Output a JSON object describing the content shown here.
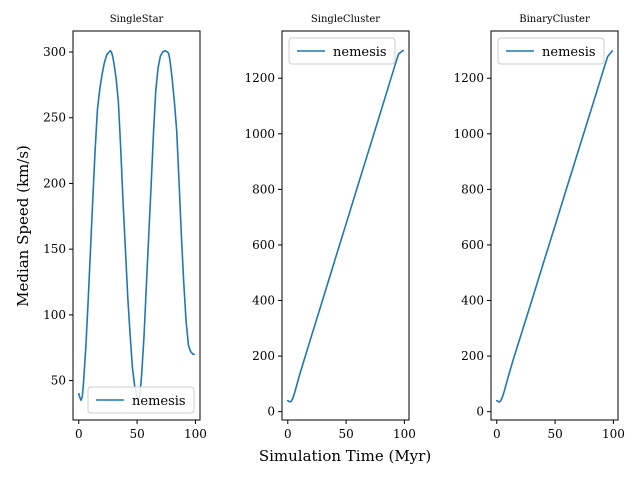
{
  "figure": {
    "xlabel": "Simulation Time (Myr)",
    "ylabel": "Median Speed (km/s)",
    "line_color": "#1f77b4"
  },
  "chart_data": [
    {
      "type": "line",
      "title": "SingleStar",
      "xlim": [
        -4.95,
        103.95
      ],
      "ylim": [
        20,
        316
      ],
      "xticks": [
        0,
        50,
        100
      ],
      "yticks": [
        50,
        100,
        150,
        200,
        250,
        300
      ],
      "legend": "lower-right",
      "grid": false,
      "series": [
        {
          "name": "nemesis",
          "x": [
            0,
            1,
            2,
            3,
            4,
            6,
            8,
            10,
            12,
            14,
            16,
            18,
            20,
            22,
            24,
            26,
            27,
            28,
            29,
            30,
            32,
            34,
            36,
            38,
            40,
            42,
            44,
            46,
            48,
            50,
            51,
            52,
            53,
            54,
            56,
            58,
            60,
            62,
            64,
            66,
            68,
            70,
            72,
            74,
            76,
            77,
            78,
            79,
            80,
            82,
            84,
            86,
            88,
            90,
            92,
            94,
            96,
            98,
            99
          ],
          "y": [
            40,
            37,
            35,
            38,
            47,
            75,
            110,
            148,
            188,
            225,
            256,
            272,
            283,
            292,
            298,
            300,
            301,
            300,
            297,
            292,
            280,
            262,
            225,
            185,
            150,
            113,
            85,
            60,
            45,
            37,
            35,
            38,
            45,
            55,
            85,
            123,
            160,
            198,
            237,
            270,
            288,
            297,
            300,
            301,
            300,
            299,
            295,
            288,
            280,
            262,
            240,
            200,
            160,
            125,
            95,
            77,
            72,
            70,
            70
          ]
        }
      ]
    },
    {
      "type": "line",
      "title": "SingleCluster",
      "xlim": [
        -4.95,
        103.95
      ],
      "ylim": [
        -30,
        1370
      ],
      "xticks": [
        0,
        50,
        100
      ],
      "yticks": [
        0,
        200,
        400,
        600,
        800,
        1000,
        1200
      ],
      "legend": "upper-left",
      "grid": false,
      "series": [
        {
          "name": "nemesis",
          "x": [
            0,
            1,
            2,
            3,
            4,
            5,
            6,
            8,
            10,
            15,
            20,
            30,
            40,
            50,
            60,
            70,
            80,
            90,
            95,
            99
          ],
          "y": [
            40,
            37,
            35,
            38,
            45,
            56,
            70,
            100,
            130,
            200,
            268,
            404,
            540,
            676,
            812,
            948,
            1084,
            1220,
            1288,
            1300
          ]
        }
      ]
    },
    {
      "type": "line",
      "title": "BinaryCluster",
      "xlim": [
        -4.95,
        103.95
      ],
      "ylim": [
        -30,
        1370
      ],
      "xticks": [
        0,
        50,
        100
      ],
      "yticks": [
        0,
        200,
        400,
        600,
        800,
        1000,
        1200
      ],
      "legend": "upper-left",
      "grid": false,
      "series": [
        {
          "name": "nemesis",
          "x": [
            0,
            1,
            2,
            3,
            4,
            5,
            6,
            8,
            10,
            15,
            20,
            30,
            40,
            50,
            60,
            70,
            80,
            90,
            95,
            99
          ],
          "y": [
            40,
            37,
            35,
            37,
            44,
            55,
            68,
            98,
            128,
            200,
            266,
            400,
            535,
            670,
            805,
            940,
            1075,
            1210,
            1278,
            1298
          ]
        }
      ]
    }
  ]
}
